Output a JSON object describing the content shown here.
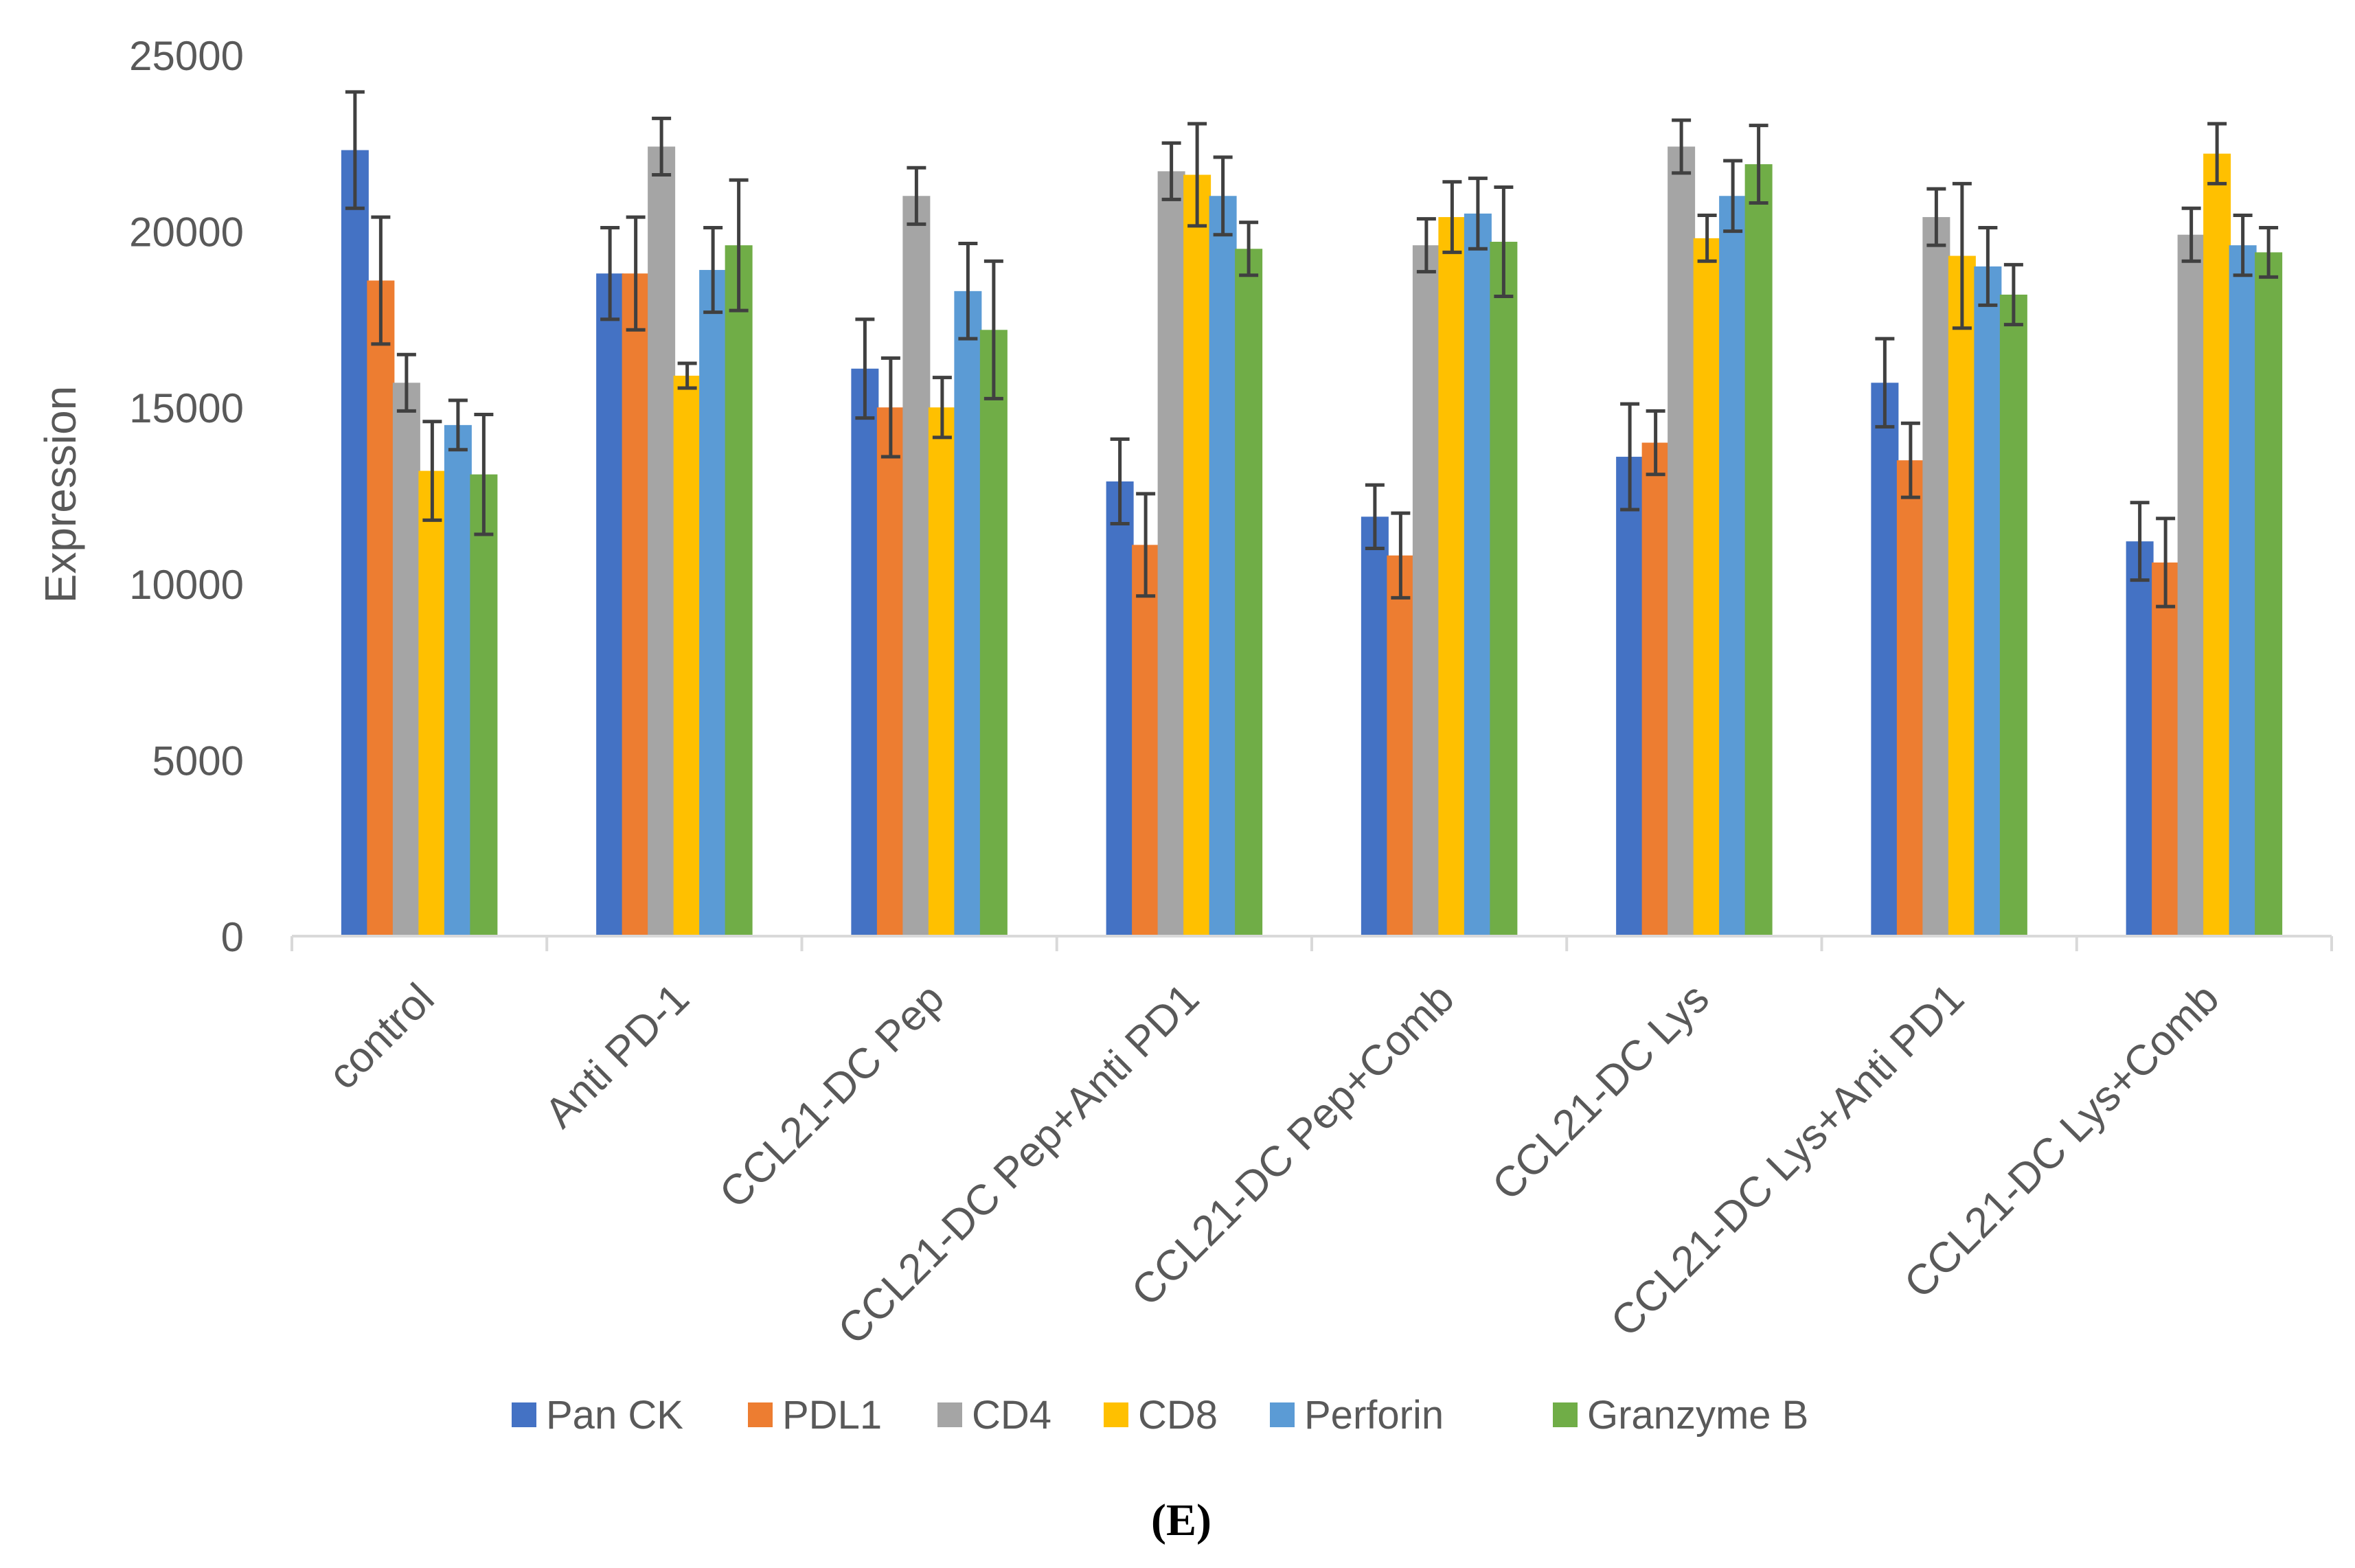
{
  "chart_data": {
    "type": "bar",
    "title": "",
    "xlabel": "",
    "ylabel": "Expression",
    "ylim": [
      0,
      25000
    ],
    "yticks": [
      0,
      5000,
      10000,
      15000,
      20000,
      25000
    ],
    "grid": false,
    "legend_position": "bottom",
    "panel_label": "(E)",
    "categories": [
      "control",
      "Anti PD-1",
      "CCL21-DC Pep",
      "CCL21-DC Pep+Anti PD1",
      "CCL21-DC Pep+Comb",
      "CCL21-DC Lys",
      "CCL21-DC Lys+Anti PD1",
      "CCL21-DC Lys+Comb"
    ],
    "series": [
      {
        "name": "Pan CK",
        "color": "#4472C4",
        "values": [
          22300,
          18800,
          16100,
          12900,
          11900,
          13600,
          15700,
          11200
        ],
        "errors": [
          1650,
          1300,
          1400,
          1200,
          900,
          1500,
          1250,
          1100
        ]
      },
      {
        "name": "PDL1",
        "color": "#ED7D31",
        "values": [
          18600,
          18800,
          15000,
          11100,
          10800,
          14000,
          13500,
          10600
        ],
        "errors": [
          1800,
          1600,
          1400,
          1450,
          1200,
          900,
          1050,
          1250
        ]
      },
      {
        "name": "CD4",
        "color": "#A5A5A5",
        "values": [
          15700,
          22400,
          21000,
          21700,
          19600,
          22400,
          20400,
          19900
        ],
        "errors": [
          800,
          800,
          800,
          800,
          750,
          750,
          800,
          750
        ]
      },
      {
        "name": "CD8",
        "color": "#FFC000",
        "values": [
          13200,
          15900,
          15000,
          21600,
          20400,
          19800,
          19300,
          22200
        ],
        "errors": [
          1400,
          350,
          850,
          1450,
          1000,
          650,
          2050,
          850
        ]
      },
      {
        "name": "Perforin",
        "color": "#5B9BD5",
        "values": [
          14500,
          18900,
          18300,
          21000,
          20500,
          21000,
          19000,
          19600
        ],
        "errors": [
          700,
          1200,
          1350,
          1100,
          1000,
          1000,
          1100,
          850
        ]
      },
      {
        "name": "Granzyme B",
        "color": "#70AD47",
        "values": [
          13100,
          19600,
          17200,
          19500,
          19700,
          21900,
          18200,
          19400
        ],
        "errors": [
          1700,
          1850,
          1950,
          750,
          1550,
          1100,
          850,
          700
        ]
      }
    ]
  }
}
